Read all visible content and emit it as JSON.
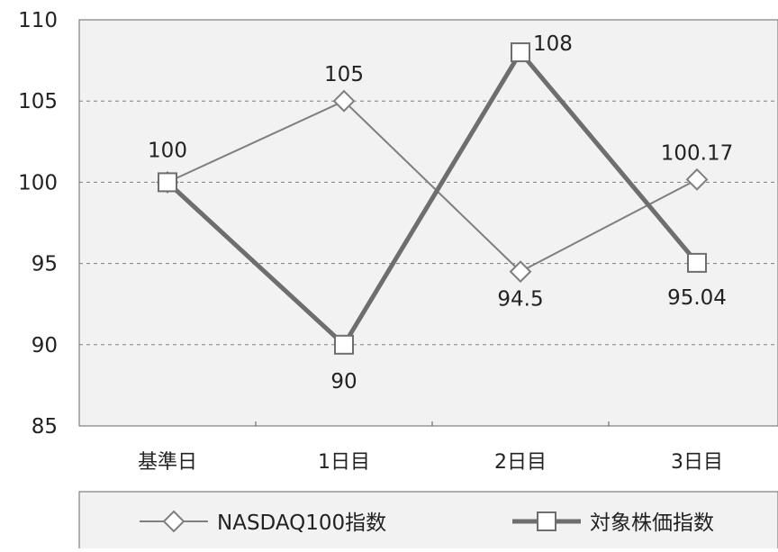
{
  "chart_data": {
    "type": "line",
    "categories": [
      "基準日",
      "1日目",
      "2日目",
      "3日目"
    ],
    "ylim": [
      85,
      110
    ],
    "yticks": [
      85,
      90,
      95,
      100,
      105,
      110
    ],
    "grid": true,
    "legend_position": "bottom",
    "series": [
      {
        "name": "NASDAQ100指数",
        "marker": "diamond",
        "values": [
          100,
          105,
          94.5,
          100.17
        ],
        "labels": [
          "",
          "105",
          "94.5",
          "100.17"
        ],
        "color": "#7f7f7f"
      },
      {
        "name": "対象株価指数",
        "marker": "square",
        "values": [
          100,
          90,
          108,
          95.04
        ],
        "labels": [
          "100",
          "90",
          "108",
          "95.04"
        ],
        "color": "#6e6e6e"
      }
    ]
  },
  "colors": {
    "plot_background": "#f2f2f2",
    "axis": "#555555",
    "grid": "#7f7f7f"
  }
}
